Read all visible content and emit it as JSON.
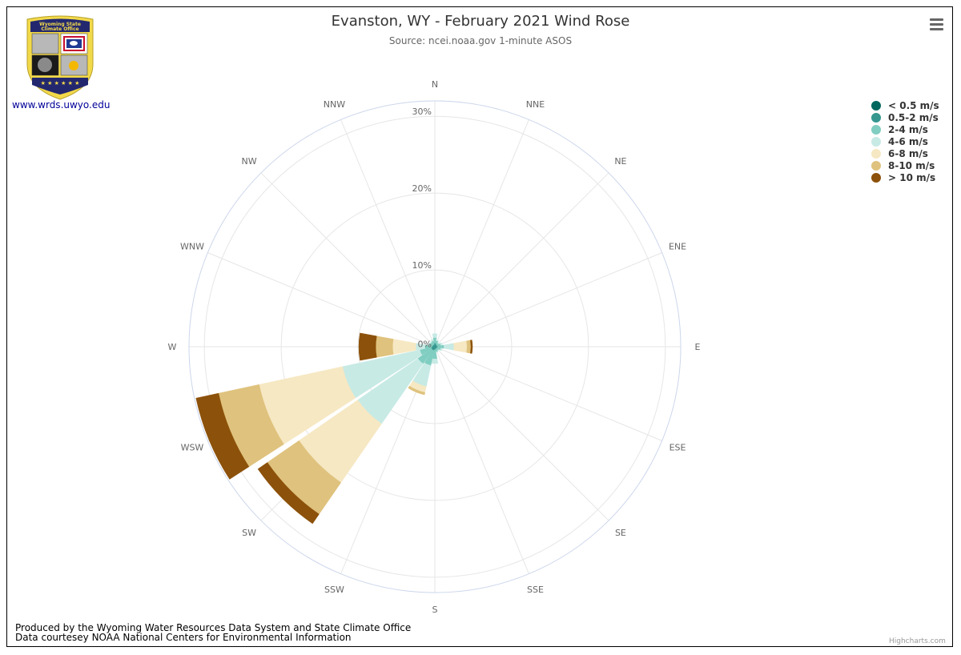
{
  "title": "Evanston, WY - February 2021 Wind Rose",
  "subtitle": "Source: ncei.noaa.gov 1-minute ASOS",
  "logo": {
    "text_line1": "Wyoming State",
    "text_line2": "Climate Office",
    "colors": {
      "navy": "#23286e",
      "gold": "#f2d94a"
    }
  },
  "site_link": "www.wrds.uwyo.edu",
  "menu_icon": "hamburger-menu-icon",
  "footer": {
    "line1": "Produced by the Wyoming Water Resources Data System and State Climate Office",
    "line2": "Data courtesey NOAA National Centers for Environmental Information"
  },
  "credits": "Highcharts.com",
  "chart_data": {
    "type": "windrose",
    "directions": [
      "N",
      "NNE",
      "NE",
      "ENE",
      "E",
      "ESE",
      "SE",
      "SSE",
      "S",
      "SSW",
      "SW",
      "WSW",
      "W",
      "WNW",
      "NW",
      "NNW"
    ],
    "radial_axis": {
      "min": 0,
      "max": 32,
      "ticks": [
        0,
        10,
        20,
        30
      ],
      "tick_labels": [
        "0%",
        "10%",
        "20%",
        "30%"
      ],
      "unit": "%"
    },
    "stacking": "normal",
    "legend_position": "right-top",
    "series": [
      {
        "name": "< 0.5 m/s",
        "color": "#01665e",
        "values": [
          0,
          0,
          0,
          0,
          0,
          0,
          0,
          0,
          0,
          0,
          0,
          0,
          0,
          0,
          0,
          0
        ]
      },
      {
        "name": "0.5-2 m/s",
        "color": "#35978f",
        "values": [
          0.5,
          0.4,
          0.3,
          0.3,
          0.4,
          0.3,
          0.3,
          0.3,
          0.4,
          0.5,
          0.5,
          0.5,
          0.4,
          0.3,
          0.3,
          0.3
        ]
      },
      {
        "name": "2-4 m/s",
        "color": "#80cdc1",
        "values": [
          0.7,
          0.4,
          0.3,
          0.5,
          0.8,
          0.5,
          0.3,
          0.4,
          1.2,
          2.0,
          2.2,
          1.5,
          0.9,
          0.5,
          0.4,
          0.5
        ]
      },
      {
        "name": "4-6 m/s",
        "color": "#c7eae5",
        "values": [
          0.5,
          0.1,
          0.1,
          0.2,
          1.3,
          0.2,
          0.1,
          0.1,
          0.6,
          2.8,
          9.5,
          10.3,
          1.2,
          0.1,
          0.1,
          0.2
        ]
      },
      {
        "name": "6-8 m/s",
        "color": "#f6e8c3",
        "values": [
          0,
          0,
          0,
          0,
          1.7,
          0,
          0,
          0,
          0,
          0.8,
          9.3,
          11.1,
          3.0,
          0,
          0,
          0
        ]
      },
      {
        "name": "8-10 m/s",
        "color": "#dfc27d",
        "values": [
          0,
          0,
          0,
          0,
          0.5,
          0,
          0,
          0,
          0,
          0.3,
          5.0,
          5.4,
          2.2,
          0,
          0,
          0
        ]
      },
      {
        "name": "> 10 m/s",
        "color": "#8c510a",
        "values": [
          0,
          0,
          0,
          0,
          0.2,
          0,
          0,
          0,
          0,
          0,
          1.5,
          3.0,
          2.2,
          0,
          0,
          0
        ]
      }
    ]
  }
}
